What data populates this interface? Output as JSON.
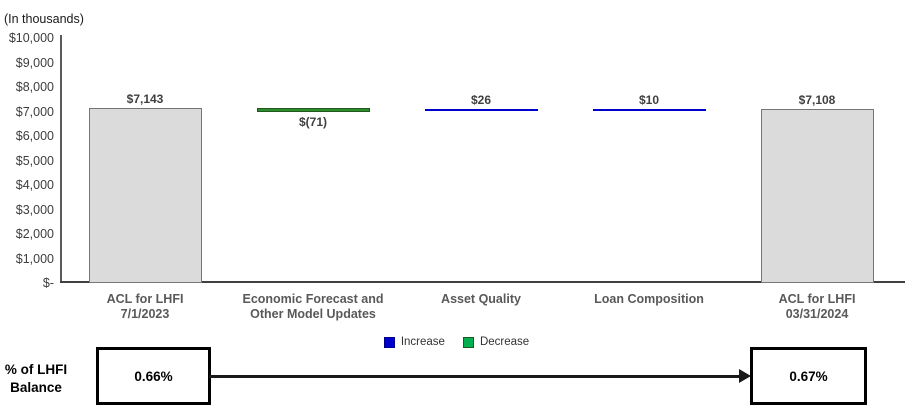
{
  "chart_data": {
    "type": "bar",
    "subtype": "waterfall",
    "unit_note": "(In thousands)",
    "title": "",
    "xlabel": "",
    "ylabel": "(In thousands)",
    "ylim": [
      0,
      10000
    ],
    "grid": false,
    "legend_position": "bottom-center",
    "yticks": [
      {
        "value": 0,
        "label": "$-"
      },
      {
        "value": 1000,
        "label": "$1,000"
      },
      {
        "value": 2000,
        "label": "$2,000"
      },
      {
        "value": 3000,
        "label": "$3,000"
      },
      {
        "value": 4000,
        "label": "$4,000"
      },
      {
        "value": 5000,
        "label": "$5,000"
      },
      {
        "value": 6000,
        "label": "$6,000"
      },
      {
        "value": 7000,
        "label": "$7,000"
      },
      {
        "value": 8000,
        "label": "$8,000"
      },
      {
        "value": 9000,
        "label": "$9,000"
      },
      {
        "value": 10000,
        "label": "$10,000"
      }
    ],
    "categories": [
      "ACL for LHFI 7/1/2023",
      "Economic Forecast and Other Model Updates",
      "Asset Quality",
      "Loan Composition",
      "ACL for LHFI 03/31/2024"
    ],
    "segments": [
      {
        "label_lines": [
          "ACL for LHFI",
          "7/1/2023"
        ],
        "type": "total",
        "start": 0,
        "end": 7143,
        "value": 7143,
        "value_label": "$7,143",
        "label_pos": "above"
      },
      {
        "label_lines": [
          "Economic Forecast and",
          "Other Model Updates"
        ],
        "type": "decrease",
        "start": 7072,
        "end": 7143,
        "value": -71,
        "value_label": "$(71)",
        "label_pos": "below"
      },
      {
        "label_lines": [
          "Asset Quality"
        ],
        "type": "increase",
        "start": 7072,
        "end": 7098,
        "value": 26,
        "value_label": "$26",
        "label_pos": "above"
      },
      {
        "label_lines": [
          "Loan Composition"
        ],
        "type": "increase",
        "start": 7098,
        "end": 7108,
        "value": 10,
        "value_label": "$10",
        "label_pos": "above"
      },
      {
        "label_lines": [
          "ACL for LHFI",
          "03/31/2024"
        ],
        "type": "total",
        "start": 0,
        "end": 7108,
        "value": 7108,
        "value_label": "$7,108",
        "label_pos": "above"
      }
    ],
    "legend": [
      {
        "label": "Increase",
        "color": "#0000CC",
        "border": "#00008B"
      },
      {
        "label": "Decrease",
        "color": "#00B050",
        "border": "#1E5A1E"
      }
    ],
    "colors": {
      "total_fill": "#DBDBDB",
      "total_border": "#767676",
      "increase_fill": "#0000CC",
      "decrease_fill": "#2E8B2E",
      "decrease_border": "#1E5A1E"
    }
  },
  "footer": {
    "row_label_line1": "% of LHFI",
    "row_label_line2": "Balance",
    "start_value": "0.66%",
    "end_value": "0.67%"
  }
}
